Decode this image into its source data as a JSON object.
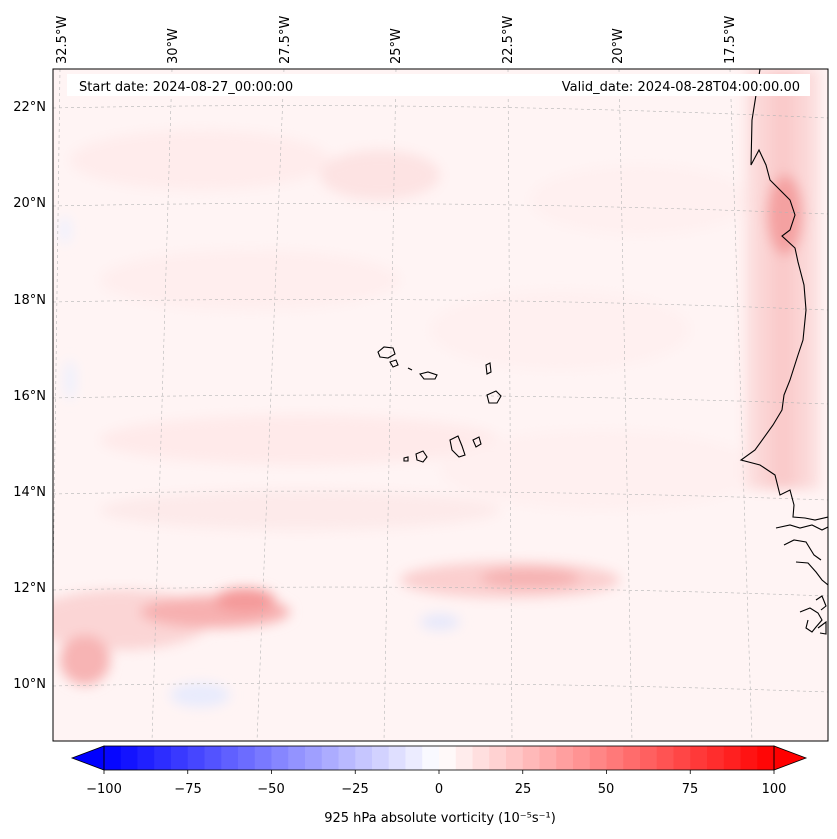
{
  "header": {
    "start_date": "Start date: 2024-08-27_00:00:00",
    "valid_date": "Valid_date: 2024-08-28T04:00:00.00"
  },
  "map": {
    "lon_labels": [
      "32.5°W",
      "30°W",
      "27.5°W",
      "25°W",
      "22.5°W",
      "20°W",
      "17.5°W"
    ],
    "lat_labels": [
      "22°N",
      "20°N",
      "18°N",
      "16°N",
      "14°N",
      "12°N",
      "10°N"
    ],
    "land_features": [
      "Cabo Verde islands",
      "West African coastline"
    ]
  },
  "colorbar": {
    "ticks": [
      "−100",
      "−75",
      "−50",
      "−25",
      "0",
      "25",
      "50",
      "75",
      "100"
    ],
    "min": -100,
    "max": 100,
    "label": "925 hPa absolute vorticity (10⁻⁵s⁻¹)",
    "colormap": "bwr",
    "low_color": "#0000ff",
    "mid_color": "#ffffff",
    "high_color": "#ff0000"
  }
}
